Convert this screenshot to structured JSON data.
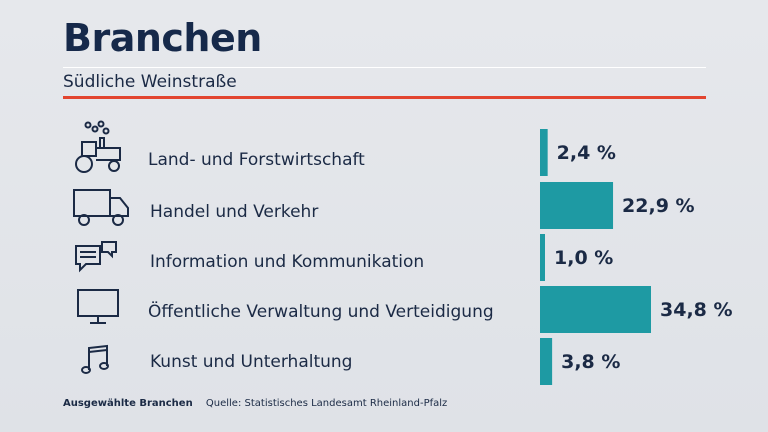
{
  "header": {
    "title": "Branchen",
    "subtitle": "Südliche Weinstraße"
  },
  "footer": {
    "note": "Ausgewählte Branchen",
    "source": "Quelle: Statistisches Landesamt Rheinland-Pfalz"
  },
  "colors": {
    "bar": "#1e9aa3",
    "accent_line": "#e2452f",
    "text": "#1b2a45"
  },
  "icons": [
    "tractor-icon",
    "truck-icon",
    "chat-bubbles-icon",
    "monitor-icon",
    "music-note-icon"
  ],
  "chart_data": {
    "type": "bar",
    "orientation": "horizontal",
    "categories": [
      "Land- und Forstwirtschaft",
      "Handel und Verkehr",
      "Information und Kommunikation",
      "Öffentliche Verwaltung und Verteidigung",
      "Kunst und Unterhaltung"
    ],
    "values": [
      2.4,
      22.9,
      1.0,
      34.8,
      3.8
    ],
    "value_labels": [
      "2,4 %",
      "22,9 %",
      "1,0 %",
      "34,8 %",
      "3,8 %"
    ],
    "title": "Branchen",
    "subtitle": "Südliche Weinstraße",
    "xlim": [
      0,
      34.8
    ],
    "grid": false,
    "legend": "none"
  }
}
